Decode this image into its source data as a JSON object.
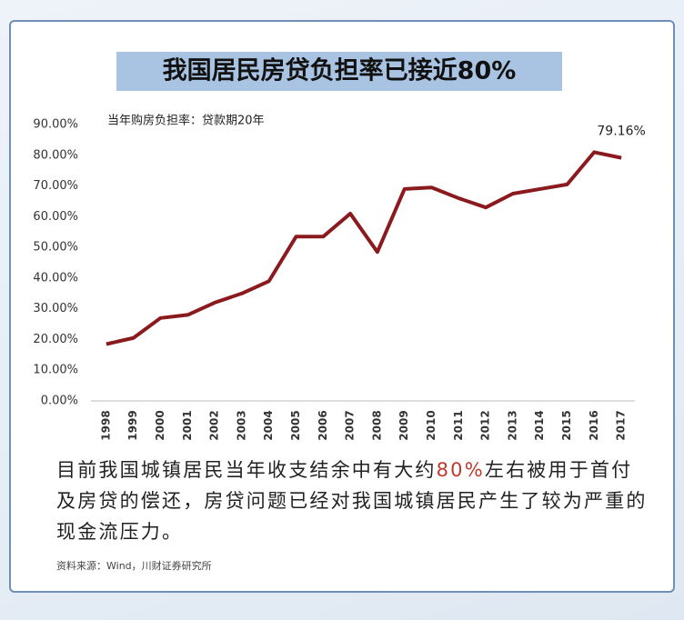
{
  "chart_data": {
    "type": "line",
    "title": "我国居民房贷负担率已接近80%",
    "subtitle": "当年购房负担率：贷款期20年",
    "categories": [
      "1998",
      "1999",
      "2000",
      "2001",
      "2002",
      "2003",
      "2004",
      "2005",
      "2006",
      "2007",
      "2008",
      "2009",
      "2010",
      "2011",
      "2012",
      "2013",
      "2014",
      "2015",
      "2016",
      "2017"
    ],
    "values": [
      18.5,
      20.5,
      27,
      28,
      32,
      35,
      39,
      53.5,
      53.5,
      61,
      48.5,
      69,
      69.5,
      66,
      63,
      67.5,
      69,
      70.5,
      81,
      79.16
    ],
    "value_labels": [
      null,
      null,
      null,
      null,
      null,
      null,
      null,
      null,
      null,
      null,
      null,
      null,
      null,
      null,
      null,
      null,
      null,
      null,
      null,
      "79.16%"
    ],
    "color": "#8b1a1f",
    "ylim": [
      0,
      90
    ],
    "yticks": [
      {
        "value": 0,
        "label": "0.00%"
      },
      {
        "value": 10,
        "label": "10.00%"
      },
      {
        "value": 20,
        "label": "20.00%"
      },
      {
        "value": 30,
        "label": "30.00%"
      },
      {
        "value": 40,
        "label": "40.00%"
      },
      {
        "value": 50,
        "label": "50.00%"
      },
      {
        "value": 60,
        "label": "60.00%"
      },
      {
        "value": 70,
        "label": "70.00%"
      },
      {
        "value": 80,
        "label": "80.00%"
      },
      {
        "value": 90,
        "label": "90.00%"
      }
    ],
    "grid": false,
    "body": [
      "目前我国城镇居民当年收支结余中有大约",
      "80%",
      "左右被用于首付及房贷的偿还，房贷问题已经对我国城镇居民产生了较为严重的现金流压力。"
    ],
    "source": "资料来源：Wind，川财证券研究所"
  }
}
